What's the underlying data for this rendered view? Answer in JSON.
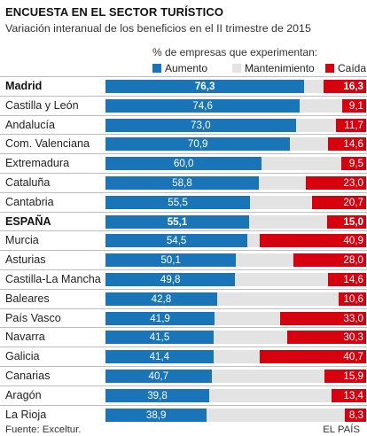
{
  "header": {
    "title": "ENCUESTA EN EL SECTOR TURÍSTICO",
    "subtitle": "Variación interanual de los beneficios en el II trimestre de 2015"
  },
  "legend": {
    "title": "% de empresas que experimentan:",
    "items": [
      {
        "label": "Aumento",
        "color": "#1a74b8"
      },
      {
        "label": "Mantenimiento",
        "color": "#e3e3e3"
      },
      {
        "label": "Caída",
        "color": "#d6000f"
      }
    ]
  },
  "footer": {
    "source": "Fuente: Exceltur.",
    "credit": "EL PAÍS"
  },
  "chart_data": {
    "type": "bar",
    "stacked": true,
    "orientation": "horizontal",
    "title": "ENCUESTA EN EL SECTOR TURÍSTICO",
    "subtitle": "Variación interanual de los beneficios en el II trimestre de 2015",
    "categories": [
      "Madrid",
      "Castilla y León",
      "Andalucía",
      "Com. Valenciana",
      "Extremadura",
      "Cataluña",
      "Cantabria",
      "ESPAÑA",
      "Murcia",
      "Asturias",
      "Castilla-La Mancha",
      "Baleares",
      "País Vasco",
      "Navarra",
      "Galicia",
      "Canarias",
      "Aragón",
      "La Rioja"
    ],
    "bold_categories": [
      "Madrid",
      "ESPAÑA"
    ],
    "xlim": [
      0,
      100
    ],
    "series": [
      {
        "name": "Aumento",
        "values": [
          76.3,
          74.6,
          73.0,
          70.9,
          60.0,
          58.8,
          55.5,
          55.1,
          54.5,
          50.1,
          49.8,
          42.8,
          41.9,
          41.5,
          41.4,
          40.7,
          39.8,
          38.9
        ]
      },
      {
        "name": "Mantenimiento",
        "values": [
          7.4,
          16.3,
          15.3,
          14.5,
          30.5,
          18.2,
          23.8,
          29.9,
          4.6,
          21.9,
          35.6,
          46.6,
          25.1,
          28.2,
          17.9,
          43.4,
          46.8,
          52.8
        ]
      },
      {
        "name": "Caída",
        "values": [
          16.3,
          9.1,
          11.7,
          14.6,
          9.5,
          23.0,
          20.7,
          15.0,
          40.9,
          28.0,
          14.6,
          10.6,
          33.0,
          30.3,
          40.7,
          15.9,
          13.4,
          8.3
        ]
      }
    ],
    "value_labels": {
      "Aumento": [
        "76,3",
        "74,6",
        "73,0",
        "70,9",
        "60,0",
        "58,8",
        "55,5",
        "55,1",
        "54,5",
        "50,1",
        "49,8",
        "42,8",
        "41,9",
        "41,5",
        "41,4",
        "40,7",
        "39,8",
        "38,9"
      ],
      "Caída": [
        "16,3",
        "9,1",
        "11,7",
        "14,6",
        "9,5",
        "23,0",
        "20,7",
        "15,0",
        "40,9",
        "28,0",
        "14,6",
        "10,6",
        "33,0",
        "30,3",
        "40,7",
        "15,9",
        "13,4",
        "8,3"
      ]
    },
    "legend_position": "top",
    "grid": false
  }
}
